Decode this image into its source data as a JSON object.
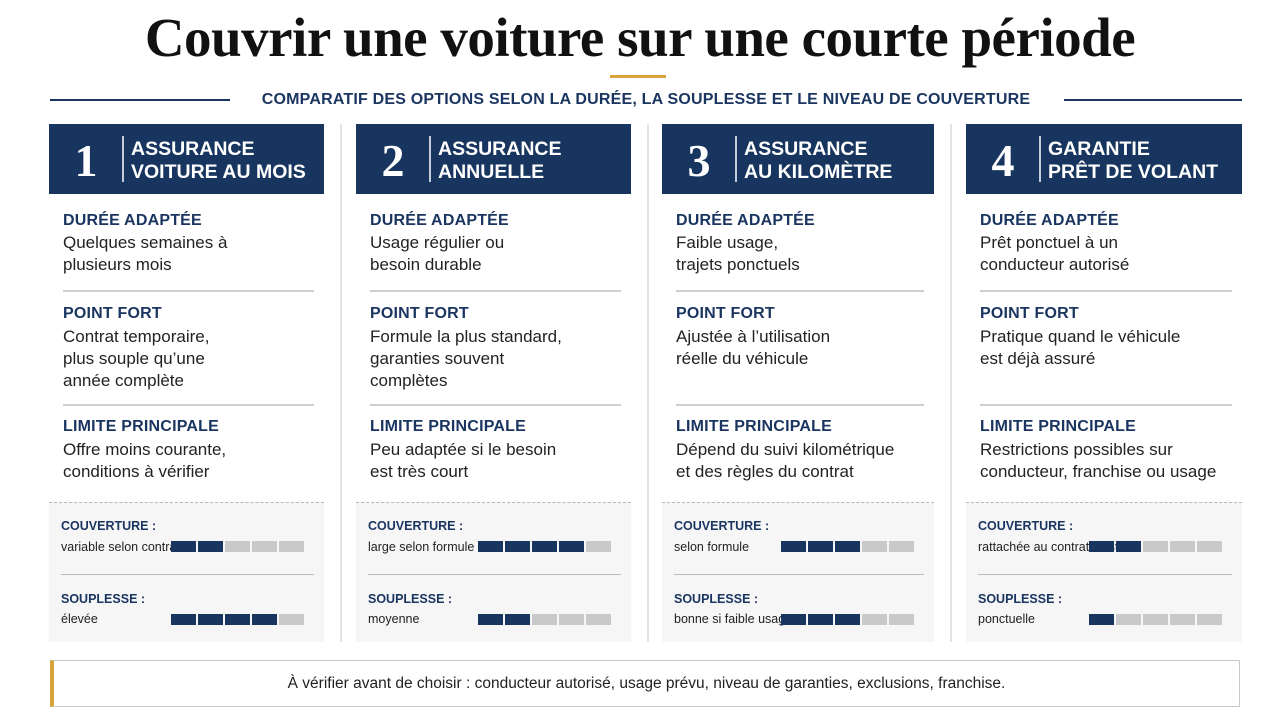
{
  "title": "Couvrir une voiture sur une courte période",
  "subtitle": "COMPARATIF DES OPTIONS SELON LA DURÉE,  LA SOUPLESSE  ET  LE NIVEAU DE COUVERTURE",
  "labels": {
    "duree": "DURÉE ADAPTÉE",
    "point_fort": "POINT FORT",
    "limite": "LIMITE PRINCIPALE",
    "couverture": "COUVERTURE :",
    "souplesse": "SOUPLESSE :"
  },
  "columns": [
    {
      "number": "1",
      "title": "ASSURANCE\nVOITURE AU MOIS",
      "duree": "Quelques semaines à\nplusieurs mois",
      "point_fort": "Contrat temporaire,\nplus souple qu’une\nannée complète",
      "limite": "Offre moins courante,\nconditions à vérifier",
      "couverture_text": "variable selon contrat",
      "couverture_level": 2,
      "souplesse_text": "élevée",
      "souplesse_level": 4
    },
    {
      "number": "2",
      "title": "ASSURANCE\nANNUELLE",
      "duree": "Usage régulier ou\nbesoin durable",
      "point_fort": "Formule la plus standard,\ngaranties souvent\ncomplètes",
      "limite": "Peu adaptée si le besoin\nest très court",
      "couverture_text": "large selon formule",
      "couverture_level": 4,
      "souplesse_text": "moyenne",
      "souplesse_level": 2
    },
    {
      "number": "3",
      "title": "ASSURANCE\nAU KILOMÈTRE",
      "duree": "Faible usage,\ntrajets ponctuels",
      "point_fort": "Ajustée à l’utilisation\nréelle du véhicule",
      "limite": "Dépend du suivi kilométrique\net des règles du contrat",
      "couverture_text": "selon formule",
      "couverture_level": 3,
      "souplesse_text": "bonne si faible usage",
      "souplesse_level": 3
    },
    {
      "number": "4",
      "title": "GARANTIE\nPRÊT DE VOLANT",
      "duree": "Prêt ponctuel à un\nconducteur autorisé",
      "point_fort": "Pratique quand le véhicule\nest déjà assuré",
      "limite": "Restrictions possibles sur\nconducteur, franchise ou usage",
      "couverture_text": "rattachée au contrat existant",
      "couverture_level": 2,
      "souplesse_text": "ponctuelle",
      "souplesse_level": 1
    }
  ],
  "footer": "À vérifier avant de choisir : conducteur autorisé, usage prévu, niveau de garanties, exclusions, franchise."
}
